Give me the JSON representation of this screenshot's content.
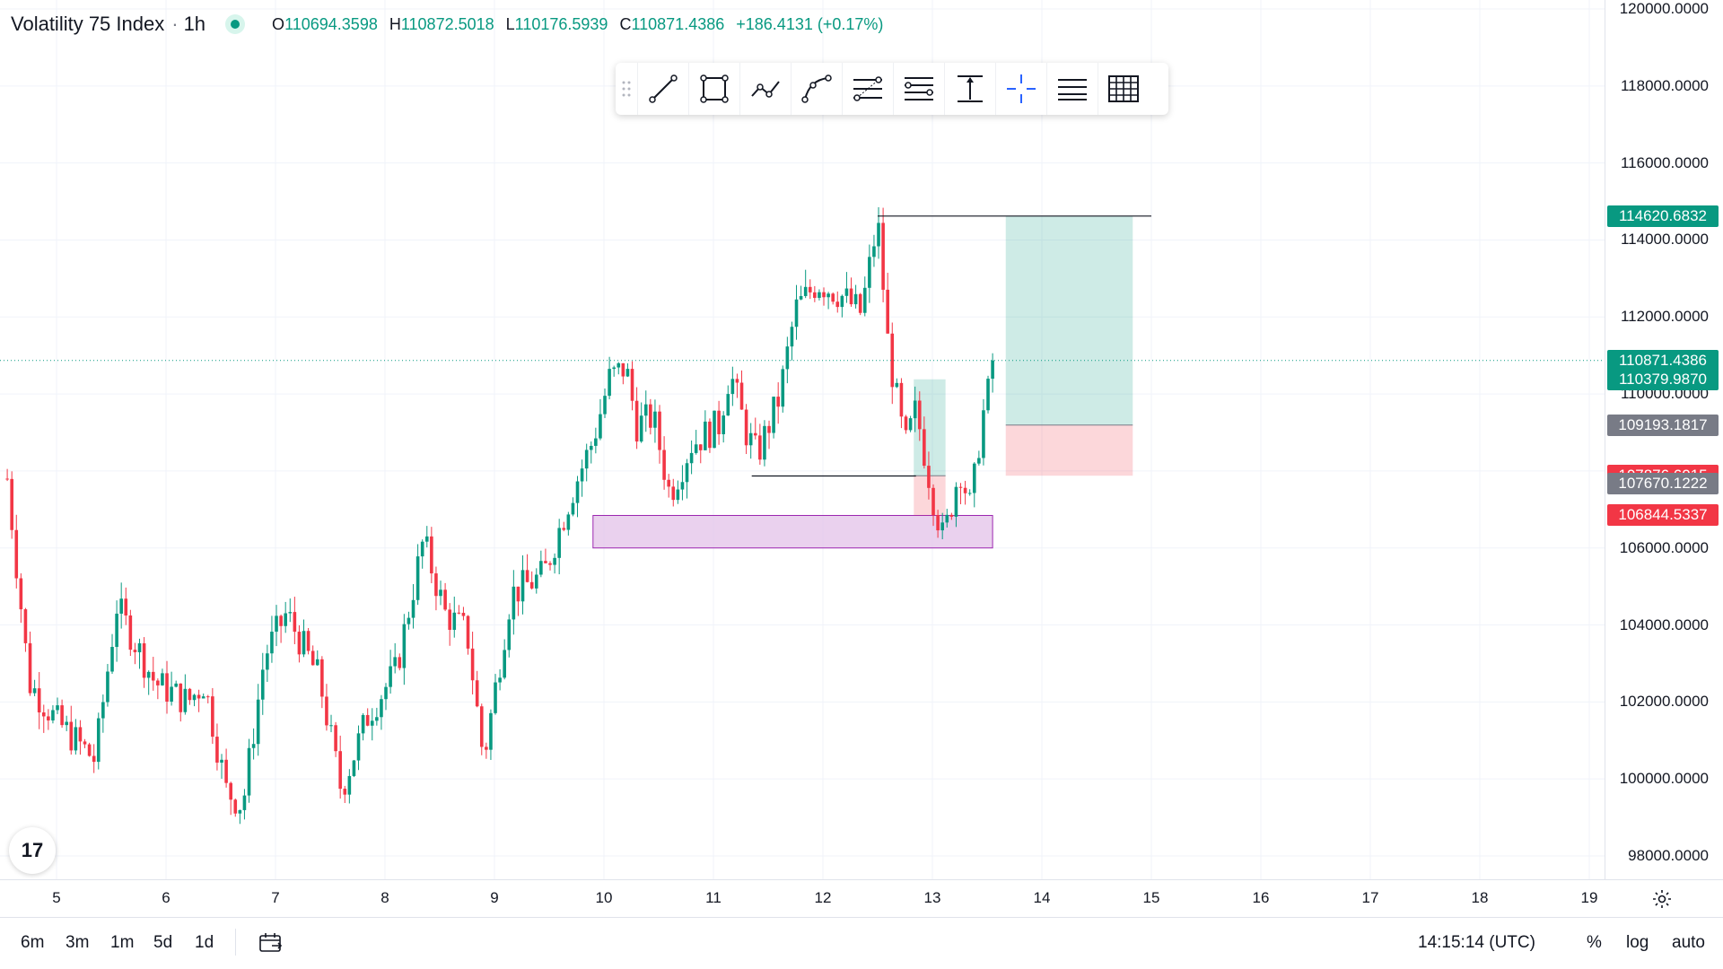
{
  "header": {
    "symbol": "Volatility 75 Index",
    "interval_separator": "·",
    "interval": "1h",
    "ohlc": [
      {
        "key": "O",
        "value": "110694.3598"
      },
      {
        "key": "H",
        "value": "110872.5018"
      },
      {
        "key": "L",
        "value": "110176.5939"
      },
      {
        "key": "C",
        "value": "110871.4386"
      }
    ],
    "change": "+186.4131 (+0.17%)"
  },
  "toolbar": {
    "tools": [
      {
        "name": "trend-line-tool-icon"
      },
      {
        "name": "rectangle-tool-icon"
      },
      {
        "name": "path-tool-icon"
      },
      {
        "name": "curve-tool-icon"
      },
      {
        "name": "fib-retracement-tool-icon"
      },
      {
        "name": "fib-extension-tool-icon"
      },
      {
        "name": "price-range-tool-icon"
      },
      {
        "name": "crosshair-tool-icon"
      },
      {
        "name": "lines-settings-icon"
      },
      {
        "name": "grid-tool-icon"
      }
    ]
  },
  "price_axis": {
    "ticks": [
      "120000.0000",
      "118000.0000",
      "116000.0000",
      "114000.0000",
      "112000.0000",
      "110000.0000",
      "108000.0000",
      "106000.0000",
      "104000.0000",
      "102000.0000",
      "100000.0000",
      "98000.0000"
    ],
    "labels": [
      {
        "text": "114620.6832",
        "price": 114620.6832,
        "color": "#089981"
      },
      {
        "text": "110871.4386",
        "price": 110871.4386,
        "color": "#089981"
      },
      {
        "text": "110379.9870",
        "price": 110379.987,
        "color": "#089981"
      },
      {
        "text": "109193.1817",
        "price": 109193.1817,
        "color": "#787b86"
      },
      {
        "text": "107876.6015",
        "price": 107876.6015,
        "color": "#f23645"
      },
      {
        "text": "107670.1222",
        "price": 107670.1222,
        "color": "#787b86"
      },
      {
        "text": "106844.5337",
        "price": 106844.5337,
        "color": "#f23645"
      }
    ]
  },
  "time_axis": {
    "ticks": [
      "5",
      "6",
      "7",
      "8",
      "9",
      "10",
      "11",
      "12",
      "13",
      "14",
      "15",
      "16",
      "17",
      "18",
      "19"
    ]
  },
  "bottom_bar": {
    "ranges": [
      "6m",
      "3m",
      "1m",
      "5d",
      "1d"
    ],
    "clock": "14:15:14 (UTC)",
    "percent": "%",
    "log": "log",
    "auto": "auto"
  },
  "logo": "17",
  "chart_data": {
    "type": "candlestick",
    "symbol": "Volatility 75 Index",
    "interval": "1h",
    "ylim": [
      97500,
      120200
    ],
    "x_ticks": [
      "5",
      "6",
      "7",
      "8",
      "9",
      "10",
      "11",
      "12",
      "13",
      "14",
      "15",
      "16",
      "17",
      "18",
      "19"
    ],
    "current_price": 110871.4386,
    "control_points": [
      [
        4.55,
        107800
      ],
      [
        4.75,
        102500
      ],
      [
        5.0,
        101500
      ],
      [
        5.35,
        100500
      ],
      [
        5.55,
        104500
      ],
      [
        5.9,
        102500
      ],
      [
        6.2,
        102000
      ],
      [
        6.35,
        102500
      ],
      [
        6.55,
        99700
      ],
      [
        6.7,
        99300
      ],
      [
        6.9,
        103200
      ],
      [
        7.1,
        104300
      ],
      [
        7.4,
        102600
      ],
      [
        7.6,
        99700
      ],
      [
        7.85,
        101700
      ],
      [
        8.1,
        102800
      ],
      [
        8.35,
        106200
      ],
      [
        8.55,
        104300
      ],
      [
        8.75,
        103800
      ],
      [
        8.9,
        100500
      ],
      [
        9.15,
        104800
      ],
      [
        9.45,
        105300
      ],
      [
        9.7,
        107400
      ],
      [
        9.9,
        108800
      ],
      [
        10.05,
        110400
      ],
      [
        10.2,
        110700
      ],
      [
        10.3,
        109200
      ],
      [
        10.45,
        109400
      ],
      [
        10.6,
        107400
      ],
      [
        10.8,
        108700
      ],
      [
        11.05,
        109200
      ],
      [
        11.15,
        110600
      ],
      [
        11.3,
        109000
      ],
      [
        11.4,
        108400
      ],
      [
        11.6,
        109900
      ],
      [
        11.75,
        112200
      ],
      [
        11.95,
        112900
      ],
      [
        12.15,
        112600
      ],
      [
        12.35,
        112100
      ],
      [
        12.5,
        114500
      ],
      [
        12.6,
        111100
      ],
      [
        12.75,
        108600
      ],
      [
        12.85,
        109600
      ],
      [
        13.0,
        107400
      ],
      [
        13.1,
        106200
      ],
      [
        13.25,
        108100
      ],
      [
        13.35,
        107000
      ],
      [
        13.45,
        109300
      ],
      [
        13.58,
        110900
      ]
    ],
    "annotations": [
      {
        "type": "horizontal-segment",
        "price": 114620.6832,
        "from": "12.5",
        "to": "15.0"
      },
      {
        "type": "horizontal-segment",
        "price": 107870,
        "from": "11.35",
        "to": "12.85"
      },
      {
        "type": "zone",
        "price_top": 106844.5337,
        "price_bottom": 106000,
        "from": "9.9",
        "to": "13.55",
        "color": "#e1bee7"
      },
      {
        "type": "long-position",
        "entry": 109193.1817,
        "target": 114620.6832,
        "stop": 107876.6015,
        "from": "13.67",
        "to": "14.83"
      },
      {
        "type": "long-position",
        "entry": 107876.6015,
        "target": 110379.987,
        "stop": 106844.5337,
        "from": "12.83",
        "to": "13.12"
      }
    ]
  }
}
